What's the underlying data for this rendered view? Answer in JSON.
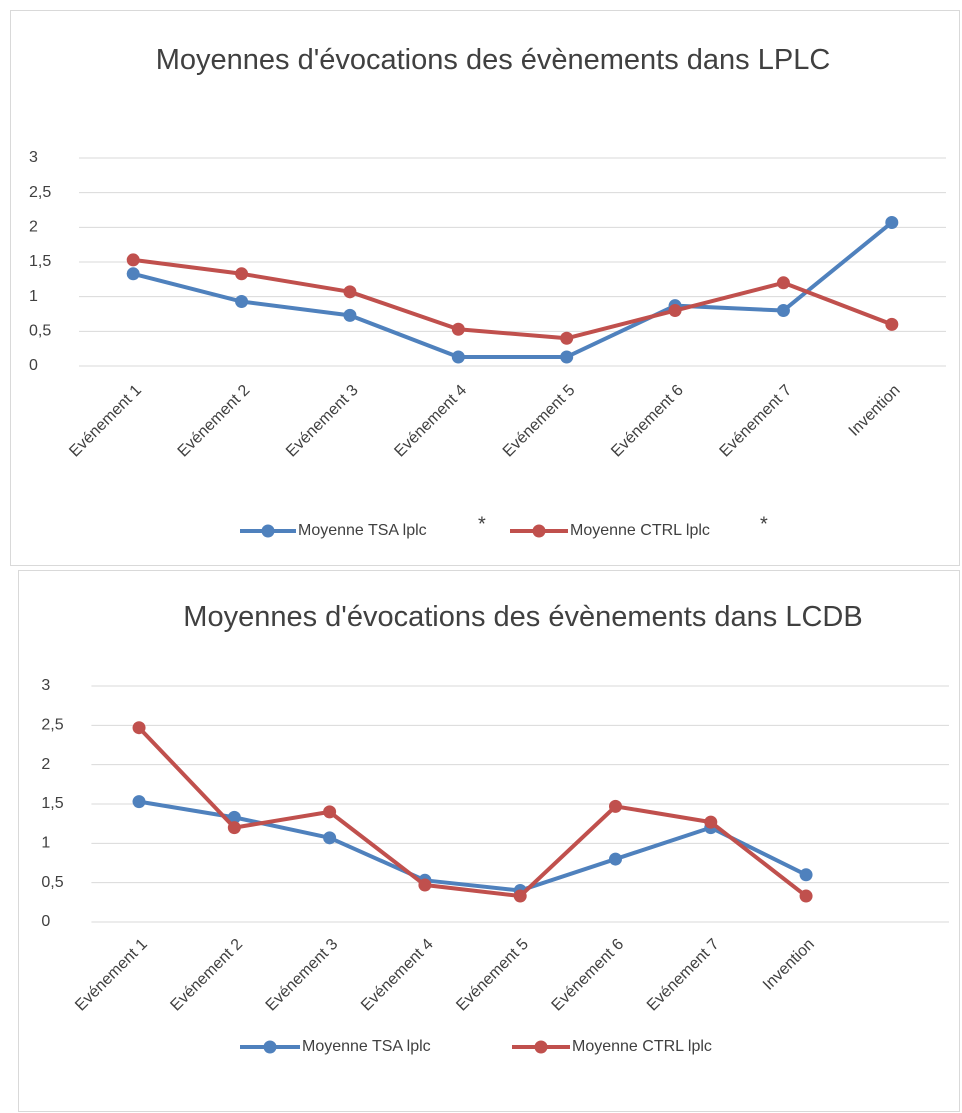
{
  "chart_data": [
    {
      "type": "line",
      "title": "Moyennes d'évocations des évènements dans LPLC",
      "categories": [
        "Evénement 1",
        "Evénement 2",
        "Evénement 3",
        "Evénement 4",
        "Evénement 5",
        "Evénement 6",
        "Evénement 7",
        "Invention"
      ],
      "series": [
        {
          "name": "Moyenne TSA lplc",
          "color": "#4f81bd",
          "values": [
            1.33,
            0.93,
            0.73,
            0.13,
            0.13,
            0.87,
            0.8,
            2.07
          ]
        },
        {
          "name": "Moyenne CTRL lplc",
          "color": "#c0504d",
          "values": [
            1.53,
            1.33,
            1.07,
            0.53,
            0.4,
            0.8,
            1.2,
            0.6
          ]
        }
      ],
      "annotations": [
        "*",
        "*"
      ],
      "ylim": [
        0,
        3
      ],
      "yticks": [
        0,
        {
          "value": 0.5,
          "label": "0,5"
        },
        1,
        {
          "value": 1.5,
          "label": "1,5"
        },
        2,
        {
          "value": 2.5,
          "label": "2,5"
        },
        3
      ],
      "grid": true,
      "legend": "bottom"
    },
    {
      "type": "line",
      "title": "Moyennes d'évocations des évènements dans LCDB",
      "categories": [
        "Evénement 1",
        "Evénement 2",
        "Evénement 3",
        "Evénement 4",
        "Evénement 5",
        "Evénement 6",
        "Evénement 7",
        "Invention",
        null
      ],
      "series": [
        {
          "name": "Moyenne TSA lplc",
          "color": "#4f81bd",
          "values": [
            1.53,
            1.33,
            1.07,
            0.53,
            0.4,
            0.8,
            1.2,
            0.6,
            null
          ]
        },
        {
          "name": "Moyenne CTRL lplc",
          "color": "#c0504d",
          "values": [
            2.47,
            1.2,
            1.4,
            0.47,
            0.33,
            1.47,
            1.27,
            0.33,
            null
          ]
        }
      ],
      "ylim": [
        0,
        3
      ],
      "yticks": [
        0,
        {
          "value": 0.5,
          "label": "0,5"
        },
        1,
        {
          "value": 1.5,
          "label": "1,5"
        },
        2,
        {
          "value": 2.5,
          "label": "2,5"
        },
        3
      ],
      "grid": true,
      "legend": "bottom"
    }
  ]
}
